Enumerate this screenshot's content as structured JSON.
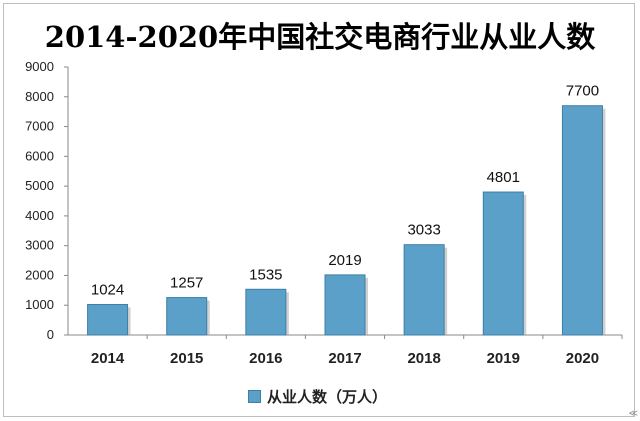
{
  "chart_data": {
    "type": "bar",
    "title": "2014-2020年中国社交电商行业从业人数",
    "categories": [
      "2014",
      "2015",
      "2016",
      "2017",
      "2018",
      "2019",
      "2020"
    ],
    "series": [
      {
        "name": "从业人数（万人）",
        "values": [
          1024,
          1257,
          1535,
          2019,
          3033,
          4801,
          7700
        ]
      }
    ],
    "data_labels": [
      "1024",
      "1257",
      "1535",
      "2019",
      "3033",
      "4801",
      "7700"
    ],
    "yticks": [
      "0",
      "1000",
      "2000",
      "3000",
      "4000",
      "5000",
      "6000",
      "7000",
      "8000",
      "9000"
    ],
    "ylim": [
      0,
      9000
    ],
    "xlabel": "",
    "ylabel": "",
    "grid": false,
    "legend_position": "bottom",
    "bar_color": "#5aa0c8"
  },
  "watermark": "≪"
}
